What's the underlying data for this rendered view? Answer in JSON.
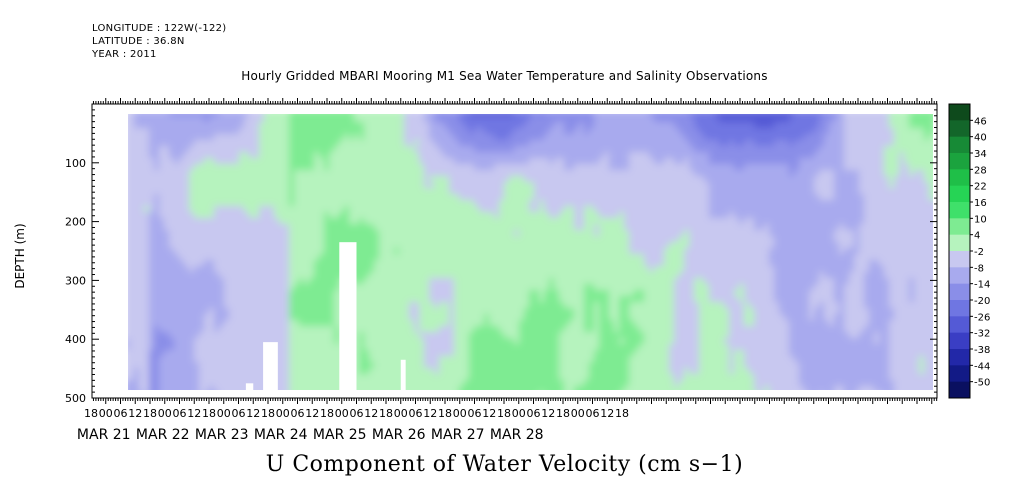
{
  "header": {
    "longitude": "LONGITUDE : 122W(-122)",
    "latitude": "LATITUDE : 36.8N",
    "year": "YEAR : 2011"
  },
  "title": "Hourly Gridded MBARI Mooring M1 Sea Water Temperature and Salinity Observations",
  "bottom_title": "U Component of Water Velocity (cm s−1)",
  "chart_data": {
    "type": "heatmap",
    "title": "Hourly Gridded MBARI Mooring M1 Sea Water Temperature and Salinity Observations",
    "xlabel": "",
    "ylabel": "DEPTH (m)",
    "variable": "U Component of Water Velocity (cm s−1)",
    "x_axis": {
      "hour_ticks": [
        "18",
        "00",
        "06",
        "12",
        "18",
        "00",
        "06",
        "12",
        "18",
        "00",
        "06",
        "12",
        "18",
        "00",
        "06",
        "12",
        "18",
        "00",
        "06",
        "12",
        "18",
        "00",
        "06",
        "12",
        "18",
        "00",
        "06",
        "12",
        "18",
        "00",
        "06",
        "12",
        "18",
        "00",
        "06",
        "12",
        "18"
      ],
      "date_labels": [
        "MAR 21",
        "MAR 22",
        "MAR 23",
        "MAR 24",
        "MAR 25",
        "MAR 26",
        "MAR 27",
        "MAR 28"
      ],
      "range": [
        "2011-03-20T18:00",
        "2011-03-28T21:00"
      ]
    },
    "y_axis": {
      "ticks": [
        100,
        200,
        300,
        400,
        500
      ],
      "ylim": [
        500,
        0
      ],
      "inverted": true
    },
    "colorbar": {
      "levels": [
        46,
        40,
        34,
        28,
        22,
        16,
        10,
        4,
        -2,
        -8,
        -14,
        -20,
        -26,
        -32,
        -38,
        -44,
        -50
      ],
      "colors": [
        "#0e4a1c",
        "#13662a",
        "#178a36",
        "#1ba33e",
        "#1fbf48",
        "#26d455",
        "#3fe06a",
        "#7eeb92",
        "#b6f3be",
        "#c8c8f0",
        "#a8aaee",
        "#8a8ee8",
        "#6f76e2",
        "#545ad6",
        "#3a3ec4",
        "#2228a8",
        "#121a86",
        "#0a1060"
      ]
    },
    "missing_data": [
      {
        "day": "MAR 23",
        "hour_start": 9,
        "hour_end": 12,
        "depth_from": 475
      },
      {
        "day": "MAR 23",
        "hour_start": 16,
        "hour_end": 22,
        "depth_from": 405
      },
      {
        "day": "MAR 24",
        "hour_start": 23,
        "hour_end": 30,
        "depth_from": 235
      },
      {
        "day": "MAR 26",
        "hour_start": 0,
        "hour_end": 2,
        "depth_from": 435
      }
    ]
  }
}
